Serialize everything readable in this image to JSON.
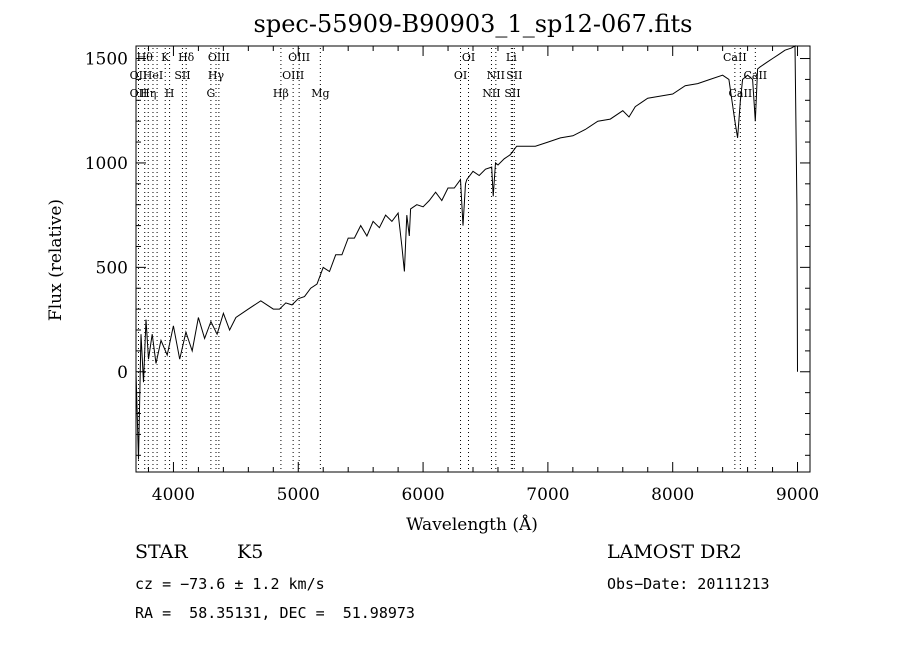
{
  "chart_data": {
    "type": "line",
    "title": "spec-55909-B90903_1_sp12-067.fits",
    "xlabel": "Wavelength (Å)",
    "ylabel": "Flux (relative)",
    "xlim": [
      3700,
      9100
    ],
    "ylim": [
      -480,
      1560
    ],
    "xticks": [
      4000,
      5000,
      6000,
      7000,
      8000,
      9000
    ],
    "yticks": [
      0,
      500,
      1000,
      1500
    ],
    "grid": false,
    "series": [
      {
        "x": [
          3700,
          3720,
          3740,
          3760,
          3780,
          3800,
          3830,
          3860,
          3900,
          3950,
          4000,
          4050,
          4100,
          4150,
          4200,
          4250,
          4300,
          4350,
          4400,
          4450,
          4500,
          4600,
          4700,
          4800,
          4850,
          4900,
          4950,
          5000,
          5050,
          5100,
          5150,
          5200,
          5250,
          5300,
          5350,
          5400,
          5450,
          5500,
          5550,
          5600,
          5650,
          5700,
          5750,
          5800,
          5830,
          5850,
          5870,
          5890,
          5900,
          5950,
          6000,
          6050,
          6100,
          6150,
          6200,
          6250,
          6300,
          6320,
          6340,
          6350,
          6400,
          6450,
          6500,
          6550,
          6562,
          6580,
          6600,
          6650,
          6700,
          6750,
          6800,
          6900,
          7000,
          7100,
          7200,
          7300,
          7400,
          7500,
          7600,
          7650,
          7700,
          7750,
          7800,
          7900,
          8000,
          8100,
          8200,
          8300,
          8400,
          8450,
          8498,
          8520,
          8542,
          8560,
          8600,
          8640,
          8662,
          8680,
          8700,
          8750,
          8800,
          8850,
          8900,
          8950,
          8980,
          8995,
          9000
        ],
        "y": [
          0,
          -420,
          180,
          -50,
          250,
          60,
          180,
          40,
          150,
          80,
          220,
          60,
          190,
          100,
          260,
          160,
          240,
          180,
          280,
          200,
          260,
          300,
          340,
          300,
          300,
          330,
          320,
          350,
          360,
          400,
          420,
          500,
          480,
          560,
          560,
          640,
          640,
          700,
          650,
          720,
          690,
          750,
          720,
          760,
          600,
          480,
          750,
          650,
          780,
          800,
          790,
          820,
          860,
          820,
          880,
          880,
          920,
          700,
          900,
          920,
          960,
          940,
          970,
          980,
          840,
          1000,
          990,
          1020,
          1040,
          1080,
          1080,
          1080,
          1100,
          1120,
          1130,
          1160,
          1200,
          1210,
          1250,
          1220,
          1270,
          1290,
          1310,
          1320,
          1330,
          1370,
          1380,
          1400,
          1420,
          1400,
          1200,
          1120,
          1300,
          1400,
          1420,
          1400,
          1200,
          1450,
          1460,
          1480,
          1500,
          1520,
          1540,
          1550,
          1560,
          800,
          0
        ]
      }
    ],
    "line_markers": [
      {
        "wl": 3720,
        "labels": [
          "",
          "OII",
          "OII"
        ]
      },
      {
        "wl": 3770,
        "labels": [
          "Hθ",
          "",
          ""
        ]
      },
      {
        "wl": 3798,
        "labels": [
          "",
          "",
          "Hη"
        ]
      },
      {
        "wl": 3836,
        "labels": [
          "",
          "HeI",
          ""
        ]
      },
      {
        "wl": 3869,
        "labels": [
          "",
          "",
          ""
        ]
      },
      {
        "wl": 3934,
        "labels": [
          "K",
          "",
          ""
        ]
      },
      {
        "wl": 3969,
        "labels": [
          "",
          "",
          "H"
        ]
      },
      {
        "wl": 4072,
        "labels": [
          "",
          "SII",
          ""
        ]
      },
      {
        "wl": 4102,
        "labels": [
          "Hδ",
          "",
          ""
        ]
      },
      {
        "wl": 4300,
        "labels": [
          "",
          "",
          "G"
        ]
      },
      {
        "wl": 4341,
        "labels": [
          "",
          "Hγ",
          ""
        ]
      },
      {
        "wl": 4364,
        "labels": [
          "OIII",
          "",
          ""
        ]
      },
      {
        "wl": 4861,
        "labels": [
          "",
          "",
          "Hβ"
        ]
      },
      {
        "wl": 4959,
        "labels": [
          "",
          "OIII",
          ""
        ]
      },
      {
        "wl": 5007,
        "labels": [
          "OIII",
          "",
          ""
        ]
      },
      {
        "wl": 5177,
        "labels": [
          "",
          "",
          "Mg"
        ]
      },
      {
        "wl": 6300,
        "labels": [
          "",
          "OI",
          ""
        ]
      },
      {
        "wl": 6364,
        "labels": [
          "OI",
          "",
          ""
        ]
      },
      {
        "wl": 6548,
        "labels": [
          "",
          "",
          "NII"
        ]
      },
      {
        "wl": 6583,
        "labels": [
          "",
          "NII",
          ""
        ]
      },
      {
        "wl": 6707,
        "labels": [
          "Li",
          "",
          ""
        ]
      },
      {
        "wl": 6716,
        "labels": [
          "",
          "",
          "SII"
        ]
      },
      {
        "wl": 6731,
        "labels": [
          "",
          "SII",
          ""
        ]
      },
      {
        "wl": 8498,
        "labels": [
          "CaII",
          "",
          ""
        ]
      },
      {
        "wl": 8542,
        "labels": [
          "",
          "",
          "CaII"
        ]
      },
      {
        "wl": 8662,
        "labels": [
          "",
          "CaII",
          ""
        ]
      }
    ]
  },
  "info": {
    "object_type": "STAR",
    "subclass": "K5",
    "survey": "LAMOST DR2",
    "velocity": "cz = −73.6 ± 1.2 km/s",
    "obs_date": "Obs−Date: 20111213",
    "coords": "RA =  58.35131, DEC =  51.98973"
  }
}
